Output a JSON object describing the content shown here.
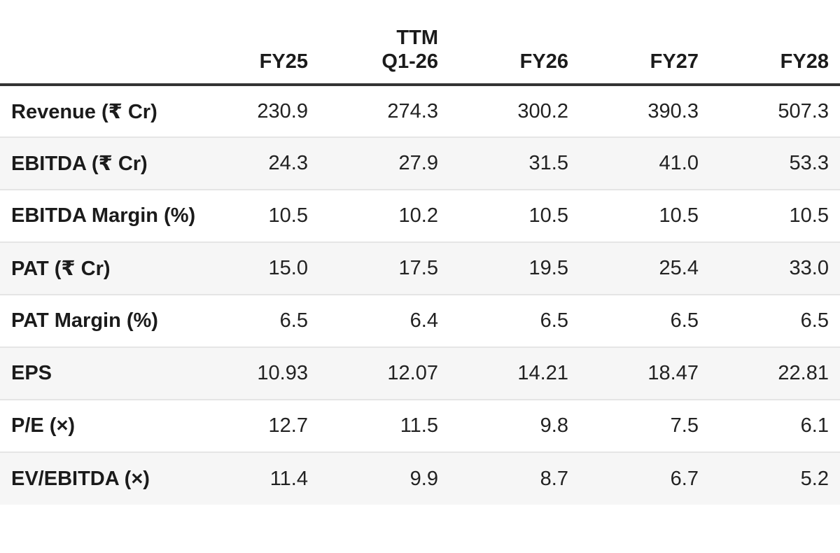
{
  "colors": {
    "background": "#ffffff",
    "text": "#1d1d1d",
    "header_rule": "#333333",
    "row_divider": "#e5e5e5",
    "stripe": "#f6f6f6"
  },
  "table": {
    "header": {
      "metric_col": "",
      "cols": [
        {
          "top": "",
          "label": "FY25"
        },
        {
          "top": "TTM",
          "label": "Q1-26"
        },
        {
          "top": "",
          "label": "FY26"
        },
        {
          "top": "",
          "label": "FY27"
        },
        {
          "top": "",
          "label": "FY28"
        }
      ]
    },
    "rows": [
      {
        "label": "Revenue (₹ Cr)",
        "values": [
          "230.9",
          "274.3",
          "300.2",
          "390.3",
          "507.3"
        ]
      },
      {
        "label": "EBITDA (₹ Cr)",
        "values": [
          "24.3",
          "27.9",
          "31.5",
          "41.0",
          "53.3"
        ]
      },
      {
        "label": "EBITDA Margin (%)",
        "values": [
          "10.5",
          "10.2",
          "10.5",
          "10.5",
          "10.5"
        ]
      },
      {
        "label": "PAT (₹ Cr)",
        "values": [
          "15.0",
          "17.5",
          "19.5",
          "25.4",
          "33.0"
        ]
      },
      {
        "label": "PAT Margin (%)",
        "values": [
          "6.5",
          "6.4",
          "6.5",
          "6.5",
          "6.5"
        ]
      },
      {
        "label": "EPS",
        "values": [
          "10.93",
          "12.07",
          "14.21",
          "18.47",
          "22.81"
        ]
      },
      {
        "label": "P/E (×)",
        "values": [
          "12.7",
          "11.5",
          "9.8",
          "7.5",
          "6.1"
        ]
      },
      {
        "label": "EV/EBITDA (×)",
        "values": [
          "11.4",
          "9.9",
          "8.7",
          "6.7",
          "5.2"
        ]
      }
    ]
  },
  "chart_data": {
    "type": "table",
    "title": "",
    "columns": [
      "FY25",
      "TTM Q1-26",
      "FY26",
      "FY27",
      "FY28"
    ],
    "rows": [
      {
        "label": "Revenue (₹ Cr)",
        "values": [
          230.9,
          274.3,
          300.2,
          390.3,
          507.3
        ]
      },
      {
        "label": "EBITDA (₹ Cr)",
        "values": [
          24.3,
          27.9,
          31.5,
          41.0,
          53.3
        ]
      },
      {
        "label": "EBITDA Margin (%)",
        "values": [
          10.5,
          10.2,
          10.5,
          10.5,
          10.5
        ]
      },
      {
        "label": "PAT (₹ Cr)",
        "values": [
          15.0,
          17.5,
          19.5,
          25.4,
          33.0
        ]
      },
      {
        "label": "PAT Margin (%)",
        "values": [
          6.5,
          6.4,
          6.5,
          6.5,
          6.5
        ]
      },
      {
        "label": "EPS",
        "values": [
          10.93,
          12.07,
          14.21,
          18.47,
          22.81
        ]
      },
      {
        "label": "P/E (×)",
        "values": [
          12.7,
          11.5,
          9.8,
          7.5,
          6.1
        ]
      },
      {
        "label": "EV/EBITDA (×)",
        "values": [
          11.4,
          9.9,
          8.7,
          6.7,
          5.2
        ]
      }
    ],
    "layout": {
      "striped_rows": "even",
      "value_alignment": "right",
      "label_alignment": "left"
    }
  }
}
